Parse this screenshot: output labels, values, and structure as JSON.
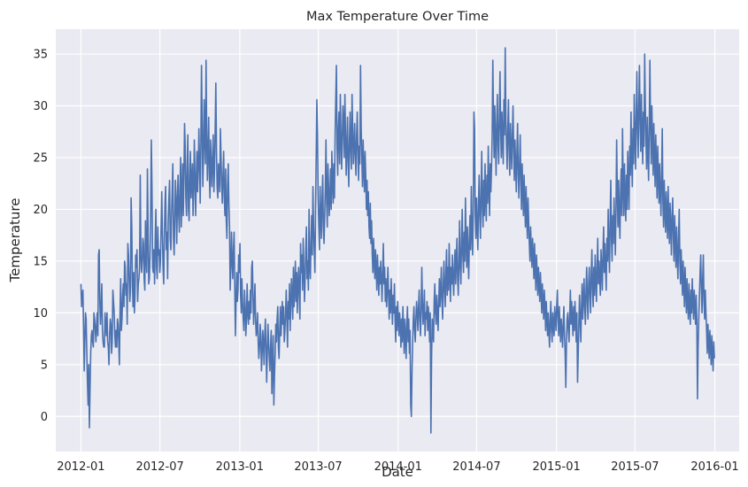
{
  "chart_data": {
    "type": "line",
    "title": "Max Temperature Over Time",
    "xlabel": "Date",
    "ylabel": "Temperature",
    "x_start": "2012-01-01",
    "x_end": "2015-12-31",
    "xlim": [
      "2011-11-04",
      "2016-02-26"
    ],
    "ylim": [
      -3.4,
      37.4
    ],
    "x_ticks": [
      "2012-01",
      "2012-07",
      "2013-01",
      "2013-07",
      "2014-01",
      "2014-07",
      "2015-01",
      "2015-07",
      "2016-01"
    ],
    "y_ticks": [
      0,
      5,
      10,
      15,
      20,
      25,
      30,
      35
    ],
    "grid": true,
    "line_color": "#4c72b0",
    "background_color": "#eaeaf2",
    "series": [
      {
        "values": [
          12.8,
          10.6,
          11.7,
          12.2,
          8.9,
          4.4,
          7.2,
          10.0,
          9.4,
          6.1,
          3.3,
          1.1,
          5.0,
          -1.1,
          2.8,
          6.1,
          7.8,
          8.3,
          7.2,
          6.7,
          10.0,
          9.4,
          8.3,
          7.2,
          8.9,
          10.0,
          7.8,
          15.6,
          16.1,
          11.1,
          8.9,
          10.6,
          12.8,
          8.3,
          7.2,
          6.7,
          6.7,
          10.0,
          8.9,
          7.8,
          10.0,
          7.2,
          6.7,
          5.0,
          7.8,
          9.4,
          8.9,
          6.1,
          7.2,
          12.2,
          11.1,
          10.0,
          7.8,
          6.7,
          8.3,
          6.7,
          9.4,
          8.9,
          7.2,
          5.0,
          10.0,
          13.3,
          8.3,
          9.4,
          11.7,
          12.8,
          10.6,
          15.0,
          14.4,
          11.7,
          12.8,
          8.9,
          16.7,
          15.6,
          13.3,
          11.1,
          12.2,
          21.1,
          18.3,
          12.8,
          10.6,
          13.9,
          10.0,
          11.7,
          15.6,
          14.4,
          16.1,
          11.1,
          12.8,
          13.3,
          14.4,
          23.3,
          15.6,
          13.9,
          15.0,
          17.2,
          16.7,
          13.3,
          12.2,
          18.9,
          15.6,
          13.9,
          23.9,
          18.3,
          12.8,
          13.3,
          15.6,
          19.4,
          26.7,
          22.2,
          14.4,
          13.9,
          16.1,
          12.8,
          17.2,
          20.0,
          14.4,
          13.3,
          18.3,
          15.6,
          16.1,
          13.9,
          15.0,
          18.3,
          21.7,
          17.8,
          14.4,
          12.8,
          17.2,
          20.6,
          22.2,
          16.1,
          17.8,
          13.3,
          18.9,
          21.1,
          22.8,
          17.2,
          16.1,
          19.4,
          21.7,
          24.4,
          17.2,
          15.6,
          18.9,
          22.8,
          21.1,
          16.7,
          20.6,
          23.3,
          19.4,
          17.8,
          22.2,
          25.0,
          18.3,
          21.1,
          24.4,
          19.4,
          22.8,
          28.3,
          26.1,
          21.1,
          19.4,
          23.9,
          27.2,
          20.0,
          18.9,
          23.3,
          25.6,
          21.1,
          22.8,
          24.4,
          19.4,
          21.7,
          26.7,
          23.3,
          19.4,
          22.8,
          25.6,
          21.7,
          23.9,
          27.8,
          24.4,
          20.6,
          26.1,
          33.9,
          28.3,
          22.2,
          25.0,
          30.6,
          26.7,
          24.4,
          34.4,
          27.2,
          22.8,
          25.6,
          28.9,
          23.3,
          21.1,
          26.7,
          24.4,
          22.2,
          25.0,
          27.2,
          21.7,
          23.9,
          27.8,
          32.2,
          25.6,
          22.2,
          21.1,
          24.4,
          23.3,
          21.7,
          27.8,
          25.0,
          22.2,
          20.6,
          23.3,
          25.6,
          21.1,
          19.4,
          23.9,
          18.9,
          17.2,
          22.2,
          24.4,
          20.6,
          18.3,
          12.2,
          14.4,
          17.8,
          15.0,
          13.3,
          16.1,
          17.8,
          12.8,
          7.8,
          11.1,
          13.9,
          11.1,
          12.2,
          15.6,
          13.9,
          16.7,
          11.7,
          10.0,
          13.3,
          11.1,
          9.4,
          8.3,
          12.2,
          10.6,
          7.8,
          9.4,
          12.8,
          10.0,
          8.9,
          11.1,
          9.4,
          12.2,
          10.0,
          14.4,
          15.0,
          11.7,
          8.9,
          10.6,
          12.8,
          9.4,
          7.8,
          8.3,
          10.0,
          7.2,
          5.6,
          6.7,
          8.9,
          7.8,
          4.4,
          6.1,
          8.3,
          7.2,
          5.0,
          7.8,
          9.4,
          6.7,
          3.3,
          6.1,
          8.9,
          7.2,
          5.6,
          4.4,
          6.7,
          8.3,
          2.2,
          5.0,
          7.8,
          1.1,
          3.9,
          6.1,
          8.9,
          7.2,
          9.4,
          10.6,
          6.7,
          5.6,
          8.3,
          10.6,
          7.8,
          9.4,
          11.1,
          8.9,
          10.6,
          7.2,
          8.3,
          10.0,
          12.2,
          9.4,
          6.7,
          11.1,
          9.4,
          12.8,
          8.3,
          10.6,
          13.3,
          11.7,
          9.4,
          14.4,
          10.6,
          12.2,
          15.0,
          11.1,
          13.9,
          10.0,
          12.8,
          14.4,
          11.7,
          9.4,
          16.7,
          13.9,
          15.6,
          12.2,
          17.2,
          14.4,
          11.1,
          13.3,
          16.1,
          18.3,
          13.3,
          15.0,
          12.2,
          20.0,
          14.4,
          13.3,
          16.7,
          19.4,
          15.6,
          22.2,
          18.3,
          16.1,
          13.9,
          20.0,
          25.0,
          30.6,
          27.2,
          21.1,
          18.3,
          16.1,
          22.2,
          19.4,
          17.2,
          21.1,
          23.3,
          18.3,
          16.7,
          19.4,
          22.2,
          26.7,
          20.6,
          18.3,
          24.4,
          22.2,
          19.4,
          21.1,
          23.9,
          20.0,
          25.6,
          22.8,
          20.6,
          24.4,
          21.1,
          27.2,
          30.6,
          33.9,
          26.1,
          23.3,
          27.8,
          29.4,
          24.4,
          31.1,
          27.2,
          23.9,
          26.7,
          30.0,
          28.3,
          25.0,
          31.1,
          27.2,
          23.3,
          26.1,
          28.9,
          24.4,
          22.2,
          26.7,
          29.4,
          25.6,
          23.9,
          31.1,
          27.8,
          24.4,
          26.1,
          28.3,
          25.0,
          23.3,
          27.2,
          29.4,
          25.6,
          22.8,
          26.1,
          24.4,
          33.9,
          27.8,
          25.0,
          22.2,
          26.7,
          23.9,
          21.7,
          25.6,
          23.3,
          20.0,
          22.8,
          19.4,
          21.7,
          18.3,
          17.2,
          20.6,
          16.7,
          18.9,
          15.6,
          13.9,
          17.2,
          15.0,
          13.3,
          16.1,
          14.4,
          12.2,
          15.6,
          13.9,
          11.7,
          14.4,
          12.8,
          15.0,
          13.3,
          11.1,
          13.9,
          16.7,
          12.8,
          14.4,
          11.1,
          13.3,
          10.6,
          12.2,
          14.4,
          11.7,
          9.4,
          12.2,
          10.0,
          13.3,
          11.1,
          8.9,
          11.7,
          10.0,
          12.8,
          9.4,
          7.2,
          10.6,
          8.3,
          11.1,
          9.4,
          7.8,
          10.0,
          8.9,
          6.7,
          9.4,
          7.2,
          10.6,
          8.3,
          6.1,
          9.4,
          7.8,
          5.6,
          8.9,
          10.6,
          7.2,
          9.4,
          6.1,
          8.3,
          1.1,
          0.0,
          4.4,
          7.2,
          9.4,
          10.6,
          8.3,
          7.2,
          9.4,
          11.1,
          10.0,
          8.3,
          10.6,
          12.2,
          9.4,
          7.8,
          10.0,
          14.4,
          11.1,
          8.9,
          10.0,
          12.2,
          7.8,
          10.0,
          9.4,
          11.1,
          8.3,
          10.6,
          9.4,
          7.2,
          10.0,
          -1.6,
          5.6,
          9.4,
          8.3,
          7.2,
          11.1,
          12.8,
          10.0,
          8.9,
          11.7,
          10.0,
          8.3,
          11.1,
          13.3,
          10.6,
          12.2,
          14.4,
          11.1,
          9.4,
          12.8,
          15.0,
          12.2,
          10.6,
          13.9,
          16.1,
          11.7,
          14.4,
          12.2,
          16.7,
          13.9,
          11.1,
          14.4,
          12.8,
          15.6,
          13.3,
          11.7,
          14.4,
          16.1,
          12.8,
          15.0,
          17.2,
          13.3,
          11.7,
          15.0,
          18.9,
          14.4,
          12.8,
          16.7,
          20.0,
          15.6,
          13.9,
          17.8,
          15.0,
          21.1,
          16.7,
          14.4,
          18.3,
          15.6,
          13.3,
          17.2,
          19.4,
          16.1,
          22.2,
          17.8,
          15.6,
          20.0,
          29.4,
          27.8,
          19.4,
          17.2,
          21.1,
          18.3,
          16.1,
          20.6,
          23.3,
          19.4,
          17.2,
          21.7,
          25.6,
          20.0,
          18.3,
          22.8,
          19.4,
          24.4,
          21.1,
          18.9,
          23.3,
          20.6,
          26.1,
          22.2,
          19.4,
          24.4,
          21.7,
          23.9,
          27.2,
          34.4,
          28.9,
          25.0,
          30.0,
          26.7,
          23.3,
          28.3,
          31.1,
          26.1,
          24.4,
          28.9,
          33.3,
          27.8,
          25.0,
          29.4,
          26.7,
          24.4,
          30.6,
          27.2,
          35.6,
          28.9,
          26.1,
          23.9,
          27.8,
          30.6,
          25.6,
          23.3,
          28.3,
          26.1,
          23.9,
          27.2,
          30.0,
          25.6,
          22.8,
          26.7,
          24.4,
          21.7,
          25.6,
          28.3,
          23.3,
          21.1,
          24.4,
          27.2,
          22.8,
          20.0,
          24.4,
          21.7,
          19.4,
          23.3,
          20.6,
          18.3,
          22.2,
          19.4,
          17.2,
          21.1,
          18.9,
          16.7,
          15.0,
          18.3,
          16.1,
          14.4,
          17.2,
          15.6,
          13.3,
          16.7,
          14.4,
          12.2,
          15.6,
          13.9,
          11.7,
          14.4,
          12.8,
          11.1,
          13.9,
          12.2,
          10.0,
          12.8,
          11.1,
          9.4,
          12.2,
          10.6,
          8.3,
          11.1,
          9.4,
          7.8,
          10.0,
          8.3,
          6.7,
          9.4,
          11.1,
          8.3,
          7.2,
          10.0,
          8.9,
          7.8,
          10.6,
          9.4,
          8.3,
          10.6,
          12.2,
          9.4,
          7.8,
          10.6,
          8.9,
          7.2,
          9.4,
          8.3,
          6.7,
          8.9,
          10.6,
          7.8,
          6.1,
          2.8,
          7.2,
          9.4,
          10.0,
          8.3,
          7.2,
          10.0,
          12.2,
          8.9,
          11.1,
          9.4,
          7.8,
          10.6,
          8.3,
          11.1,
          9.4,
          7.2,
          10.0,
          3.3,
          6.1,
          8.9,
          11.7,
          9.4,
          7.2,
          10.6,
          12.8,
          9.4,
          11.1,
          13.3,
          10.6,
          8.9,
          12.2,
          14.4,
          11.1,
          9.4,
          12.8,
          14.4,
          11.7,
          10.0,
          13.9,
          16.1,
          12.2,
          10.6,
          14.4,
          11.7,
          15.6,
          13.3,
          11.1,
          14.4,
          17.2,
          12.8,
          15.0,
          13.3,
          11.7,
          16.1,
          14.4,
          12.2,
          15.6,
          18.3,
          13.9,
          16.7,
          14.4,
          12.2,
          17.2,
          15.0,
          20.0,
          16.1,
          13.9,
          18.9,
          22.8,
          17.2,
          15.0,
          19.4,
          16.7,
          21.1,
          18.3,
          15.6,
          20.0,
          26.7,
          21.7,
          18.3,
          22.8,
          19.4,
          17.2,
          21.7,
          23.9,
          19.4,
          27.8,
          22.2,
          19.4,
          24.4,
          21.1,
          18.9,
          23.3,
          20.0,
          25.6,
          22.8,
          20.0,
          26.1,
          23.3,
          29.4,
          25.0,
          22.2,
          27.8,
          24.4,
          31.1,
          27.2,
          23.9,
          28.9,
          33.3,
          27.8,
          25.0,
          30.0,
          33.9,
          28.3,
          25.6,
          31.1,
          27.2,
          24.4,
          29.4,
          26.1,
          35.0,
          30.0,
          26.7,
          23.9,
          28.9,
          25.6,
          22.8,
          27.8,
          34.4,
          28.3,
          24.4,
          30.0,
          26.7,
          23.3,
          28.3,
          25.0,
          22.2,
          27.2,
          24.4,
          21.1,
          26.1,
          23.3,
          20.6,
          24.4,
          21.7,
          19.4,
          23.3,
          27.8,
          20.6,
          18.3,
          22.8,
          20.0,
          17.8,
          21.7,
          19.4,
          17.2,
          22.2,
          18.9,
          16.7,
          20.6,
          18.3,
          15.6,
          19.4,
          21.1,
          17.2,
          15.0,
          19.4,
          16.7,
          14.4,
          18.3,
          15.6,
          13.3,
          17.2,
          20.0,
          15.0,
          12.8,
          16.1,
          13.9,
          11.7,
          15.0,
          12.8,
          10.6,
          14.4,
          12.2,
          10.0,
          13.3,
          11.1,
          9.4,
          12.8,
          10.6,
          8.9,
          12.2,
          10.0,
          13.3,
          11.1,
          9.4,
          12.2,
          10.6,
          8.9,
          11.7,
          9.4,
          1.7,
          6.7,
          9.4,
          11.7,
          13.9,
          15.6,
          12.2,
          10.0,
          13.3,
          15.6,
          11.1,
          9.4,
          12.2,
          10.0,
          8.3,
          6.1,
          8.9,
          7.2,
          5.6,
          8.3,
          6.7,
          5.0,
          7.8,
          6.1,
          4.4,
          7.2,
          5.6
        ]
      }
    ]
  }
}
